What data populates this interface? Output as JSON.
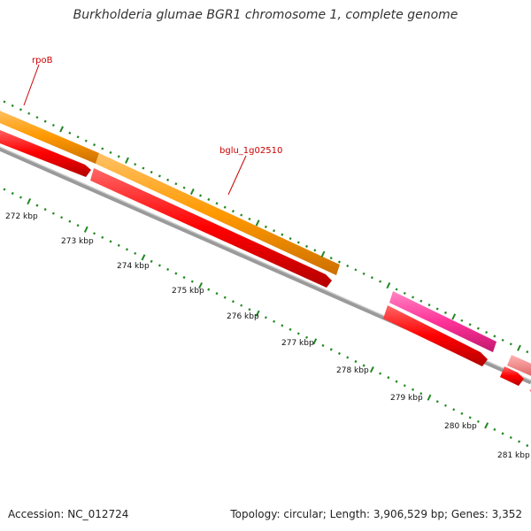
{
  "title": "Burkholderia glumae BGR1 chromosome 1, complete genome",
  "footer": {
    "accession": "Accession: NC_012724",
    "topology": "Topology: circular; Length: 3,906,529 bp; Genes: 3,352"
  },
  "colors": {
    "outer_gene": "#ff9900",
    "forward_cds": "#ff0000",
    "pink_gene": "#ff3399",
    "salmon_gene": "#f08080",
    "backbone": "#808080",
    "tick": "#228822",
    "gene_label": "#cc0000"
  },
  "gene_labels": [
    {
      "id": "rpoB",
      "text": "rpoB"
    },
    {
      "id": "bglu",
      "text": "bglu_1g02510"
    }
  ],
  "ticks": [
    "272 kbp",
    "273 kbp",
    "274 kbp",
    "275 kbp",
    "276 kbp",
    "277 kbp",
    "278 kbp",
    "279 kbp",
    "280 kbp",
    "281 kbp"
  ]
}
